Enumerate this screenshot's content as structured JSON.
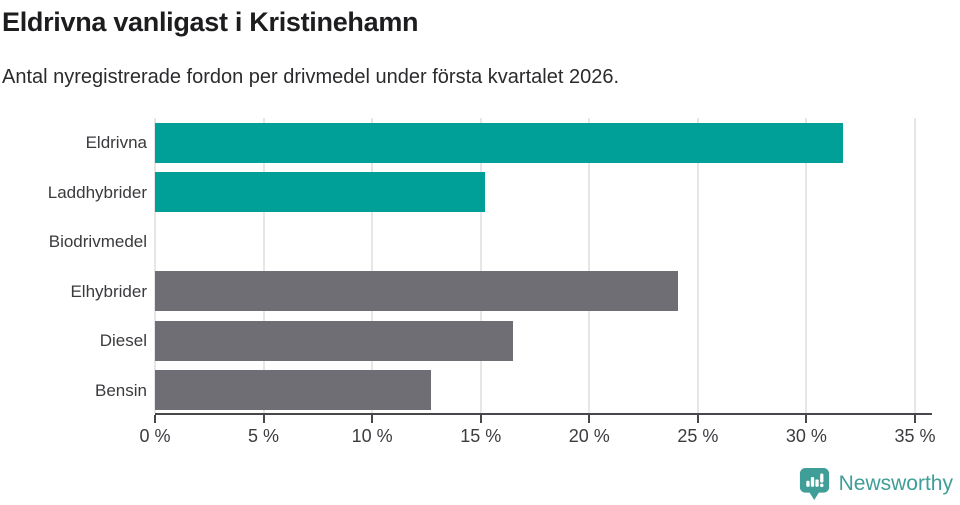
{
  "chart_data": {
    "type": "bar",
    "orientation": "horizontal",
    "title": "Eldrivna vanligast i Kristinehamn",
    "subtitle": "Antal nyregistrerade fordon per drivmedel under första kvartalet 2026.",
    "categories": [
      "Eldrivna",
      "Laddhybrider",
      "Biodrivmedel",
      "Elhybrider",
      "Diesel",
      "Bensin"
    ],
    "values": [
      31.7,
      15.2,
      0,
      24.1,
      16.5,
      12.7
    ],
    "unit": "%",
    "bar_colors": [
      "#00a099",
      "#00a099",
      "#6e6e74",
      "#6e6e74",
      "#6e6e74",
      "#6e6e74"
    ],
    "xlim": [
      0,
      35.8
    ],
    "xticks": [
      0,
      5,
      10,
      15,
      20,
      25,
      30,
      35
    ],
    "xtick_labels": [
      "0 %",
      "5 %",
      "10 %",
      "15 %",
      "20 %",
      "25 %",
      "30 %",
      "35 %"
    ],
    "grid": "vertical",
    "legend": "none"
  },
  "colors": {
    "highlight": "#00a099",
    "muted": "#6e6e74",
    "grid": "#e6e6e6",
    "axis": "#47474c",
    "brand": "#3f9e97"
  },
  "footer": {
    "brand": "Newsworthy"
  }
}
